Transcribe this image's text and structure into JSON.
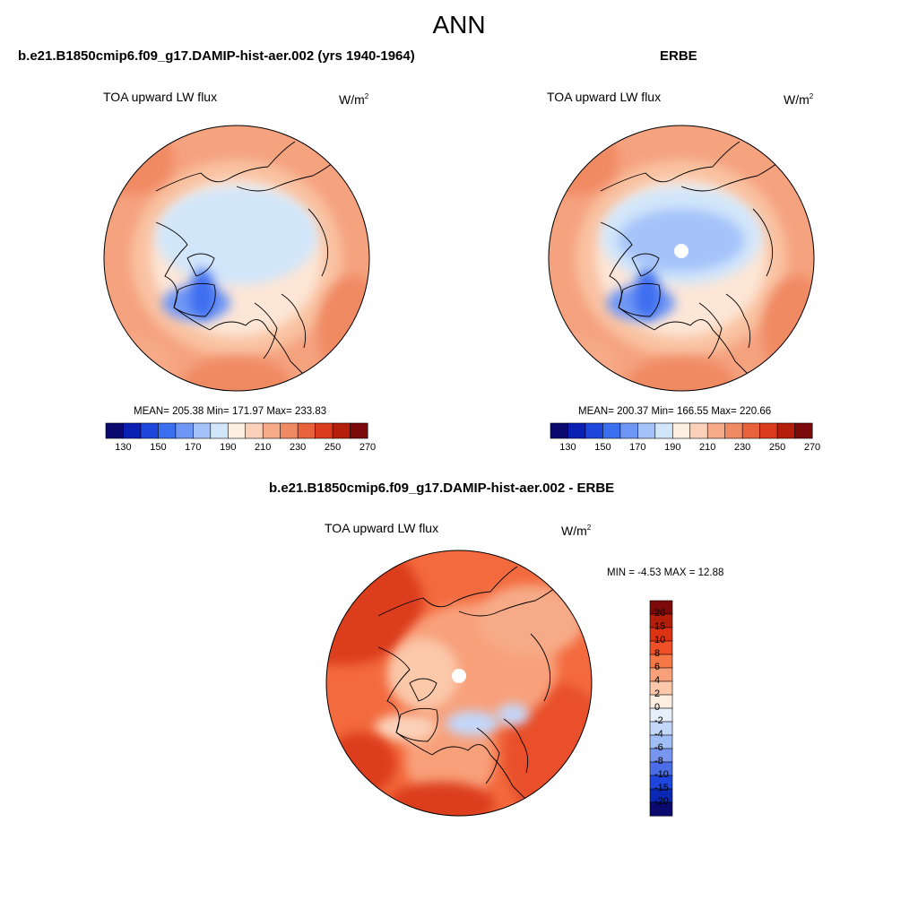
{
  "title": "ANN",
  "units": {
    "base": "W/m",
    "exp": "2"
  },
  "panels": [
    {
      "case": "b.e21.B1850cmip6.f09_g17.DAMIP-hist-aer.002 (yrs 1940-1964)",
      "variable": "TOA upward LW flux",
      "stats": "MEAN= 205.38  Min= 171.97  Max= 233.83"
    },
    {
      "case": "ERBE",
      "variable": "TOA upward LW flux",
      "stats": "MEAN= 200.37  Min= 166.55  Max= 220.66"
    },
    {
      "case": "b.e21.B1850cmip6.f09_g17.DAMIP-hist-aer.002 - ERBE",
      "variable": "TOA upward LW flux",
      "stats": "MIN =  -4.53 MAX =  12.88"
    }
  ],
  "colorbar_abs": {
    "ticks": [
      "130",
      "150",
      "170",
      "190",
      "210",
      "230",
      "250",
      "270"
    ],
    "colors": [
      "#0a0a6e",
      "#0a1fb4",
      "#1e46dc",
      "#3c6ef0",
      "#6e96f5",
      "#a5c3fa",
      "#d2e6fa",
      "#fdeee2",
      "#fbd2b9",
      "#f7aa87",
      "#f08a64",
      "#e8623e",
      "#dc3c1e",
      "#b41e0a",
      "#7d0a0a"
    ]
  },
  "colorbar_diff": {
    "ticks": [
      "20",
      "15",
      "10",
      "8",
      "6",
      "4",
      "2",
      "0",
      "-2",
      "-4",
      "-6",
      "-8",
      "-10",
      "-15",
      "-20"
    ],
    "colors": [
      "#7d0a0a",
      "#b41e0a",
      "#dc3214",
      "#f05028",
      "#f57846",
      "#f8a07a",
      "#fbc8aa",
      "#fdeee2",
      "#e6eefa",
      "#c3d7fa",
      "#a0bef5",
      "#7896f0",
      "#4b6ee6",
      "#1e46dc",
      "#0a28b4",
      "#0a0a6e"
    ]
  }
}
